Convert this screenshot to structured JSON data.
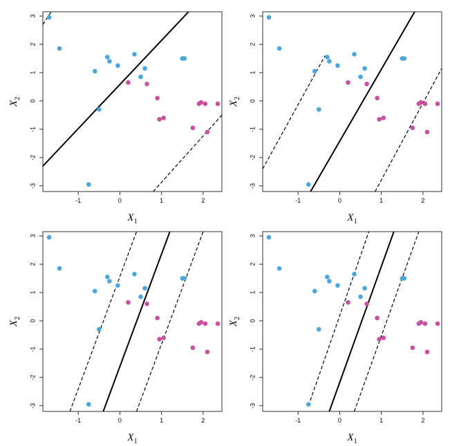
{
  "figure": {
    "layout": "2x2 grid"
  },
  "chart_data": [
    {
      "type": "scatter",
      "panel": "top-left",
      "xlabel": "X",
      "xlabel_sub": "1",
      "ylabel": "X",
      "ylabel_sub": "2",
      "xlim": [
        -1.85,
        2.45
      ],
      "ylim": [
        -3.2,
        3.15
      ],
      "xticks": [
        -1,
        0,
        1,
        2
      ],
      "yticks": [
        -3,
        -2,
        -1,
        0,
        1,
        2,
        3
      ],
      "grid": false,
      "legend": "none",
      "colors": {
        "class_a": "#4aa6dc",
        "class_b": "#c8509f",
        "line": "#000000"
      },
      "points_a": [
        [
          -1.7,
          2.95
        ],
        [
          -1.45,
          1.85
        ],
        [
          -0.6,
          1.05
        ],
        [
          -0.5,
          -0.3
        ],
        [
          -0.3,
          1.55
        ],
        [
          -0.25,
          1.4
        ],
        [
          -0.05,
          1.25
        ],
        [
          0.35,
          1.65
        ],
        [
          0.5,
          0.85
        ],
        [
          0.6,
          1.15
        ],
        [
          1.5,
          1.5
        ],
        [
          1.55,
          1.5
        ],
        [
          -0.75,
          -2.95
        ]
      ],
      "points_b": [
        [
          0.2,
          0.65
        ],
        [
          0.65,
          0.6
        ],
        [
          0.9,
          0.1
        ],
        [
          0.95,
          -0.65
        ],
        [
          1.05,
          -0.6
        ],
        [
          1.75,
          -0.95
        ],
        [
          1.9,
          -0.1
        ],
        [
          1.95,
          -0.05
        ],
        [
          2.05,
          -0.1
        ],
        [
          2.1,
          -1.1
        ],
        [
          2.35,
          -0.1
        ]
      ],
      "lines": [
        {
          "style": "solid",
          "from": [
            -1.85,
            -2.3
          ],
          "to": [
            1.65,
            3.15
          ]
        },
        {
          "style": "dashed",
          "from": [
            -1.85,
            2.7
          ],
          "to": [
            -1.65,
            3.15
          ]
        },
        {
          "style": "dashed",
          "from": [
            0.8,
            -3.2
          ],
          "to": [
            2.45,
            -0.5
          ]
        }
      ]
    },
    {
      "type": "scatter",
      "panel": "top-right",
      "xlabel": "X",
      "xlabel_sub": "1",
      "ylabel": "X",
      "ylabel_sub": "2",
      "xlim": [
        -1.85,
        2.45
      ],
      "ylim": [
        -3.2,
        3.15
      ],
      "xticks": [
        -1,
        0,
        1,
        2
      ],
      "yticks": [
        -3,
        -2,
        -1,
        0,
        1,
        2,
        3
      ],
      "grid": false,
      "legend": "none",
      "colors": {
        "class_a": "#4aa6dc",
        "class_b": "#c8509f",
        "line": "#000000"
      },
      "points_a": [
        [
          -1.7,
          2.95
        ],
        [
          -1.45,
          1.85
        ],
        [
          -0.6,
          1.05
        ],
        [
          -0.5,
          -0.3
        ],
        [
          -0.3,
          1.55
        ],
        [
          -0.25,
          1.4
        ],
        [
          -0.05,
          1.25
        ],
        [
          0.35,
          1.65
        ],
        [
          0.5,
          0.85
        ],
        [
          0.6,
          1.15
        ],
        [
          1.5,
          1.5
        ],
        [
          1.55,
          1.5
        ],
        [
          -0.75,
          -2.95
        ]
      ],
      "points_b": [
        [
          0.2,
          0.65
        ],
        [
          0.65,
          0.6
        ],
        [
          0.9,
          0.1
        ],
        [
          0.95,
          -0.65
        ],
        [
          1.05,
          -0.6
        ],
        [
          1.75,
          -0.95
        ],
        [
          1.9,
          -0.1
        ],
        [
          1.95,
          -0.05
        ],
        [
          2.05,
          -0.1
        ],
        [
          2.1,
          -1.1
        ],
        [
          2.35,
          -0.1
        ]
      ],
      "lines": [
        {
          "style": "solid",
          "from": [
            -0.7,
            -3.2
          ],
          "to": [
            1.8,
            3.15
          ]
        },
        {
          "style": "dashed",
          "from": [
            -1.85,
            -2.4
          ],
          "to": [
            -0.35,
            1.6
          ]
        },
        {
          "style": "dashed",
          "from": [
            0.85,
            -3.2
          ],
          "to": [
            2.45,
            1.15
          ]
        }
      ]
    },
    {
      "type": "scatter",
      "panel": "bottom-left",
      "xlabel": "X",
      "xlabel_sub": "1",
      "ylabel": "X",
      "ylabel_sub": "2",
      "xlim": [
        -1.85,
        2.45
      ],
      "ylim": [
        -3.2,
        3.15
      ],
      "xticks": [
        -1,
        0,
        1,
        2
      ],
      "yticks": [
        -3,
        -2,
        -1,
        0,
        1,
        2,
        3
      ],
      "grid": false,
      "legend": "none",
      "colors": {
        "class_a": "#4aa6dc",
        "class_b": "#c8509f",
        "line": "#000000"
      },
      "points_a": [
        [
          -1.7,
          2.95
        ],
        [
          -1.45,
          1.85
        ],
        [
          -0.6,
          1.05
        ],
        [
          -0.5,
          -0.3
        ],
        [
          -0.3,
          1.55
        ],
        [
          -0.25,
          1.4
        ],
        [
          -0.05,
          1.25
        ],
        [
          0.35,
          1.65
        ],
        [
          0.5,
          0.85
        ],
        [
          0.6,
          1.15
        ],
        [
          1.5,
          1.5
        ],
        [
          1.55,
          1.5
        ],
        [
          -0.75,
          -2.95
        ]
      ],
      "points_b": [
        [
          0.2,
          0.65
        ],
        [
          0.65,
          0.6
        ],
        [
          0.9,
          0.1
        ],
        [
          0.95,
          -0.65
        ],
        [
          1.05,
          -0.6
        ],
        [
          1.75,
          -0.95
        ],
        [
          1.9,
          -0.1
        ],
        [
          1.95,
          -0.05
        ],
        [
          2.05,
          -0.1
        ],
        [
          2.1,
          -1.1
        ],
        [
          2.35,
          -0.1
        ]
      ],
      "lines": [
        {
          "style": "solid",
          "from": [
            -0.4,
            -3.2
          ],
          "to": [
            1.2,
            3.15
          ]
        },
        {
          "style": "dashed",
          "from": [
            -1.2,
            -3.2
          ],
          "to": [
            0.4,
            3.15
          ]
        },
        {
          "style": "dashed",
          "from": [
            0.4,
            -3.2
          ],
          "to": [
            2.0,
            3.15
          ]
        }
      ]
    },
    {
      "type": "scatter",
      "panel": "bottom-right",
      "xlabel": "X",
      "xlabel_sub": "1",
      "ylabel": "X",
      "ylabel_sub": "2",
      "xlim": [
        -1.85,
        2.45
      ],
      "ylim": [
        -3.2,
        3.15
      ],
      "xticks": [
        -1,
        0,
        1,
        2
      ],
      "yticks": [
        -3,
        -2,
        -1,
        0,
        1,
        2,
        3
      ],
      "grid": false,
      "legend": "none",
      "colors": {
        "class_a": "#4aa6dc",
        "class_b": "#c8509f",
        "line": "#000000"
      },
      "points_a": [
        [
          -1.7,
          2.95
        ],
        [
          -1.45,
          1.85
        ],
        [
          -0.6,
          1.05
        ],
        [
          -0.5,
          -0.3
        ],
        [
          -0.3,
          1.55
        ],
        [
          -0.25,
          1.4
        ],
        [
          -0.05,
          1.25
        ],
        [
          0.35,
          1.65
        ],
        [
          0.5,
          0.85
        ],
        [
          0.6,
          1.15
        ],
        [
          1.5,
          1.5
        ],
        [
          1.55,
          1.5
        ],
        [
          -0.75,
          -2.95
        ]
      ],
      "points_b": [
        [
          0.2,
          0.65
        ],
        [
          0.65,
          0.6
        ],
        [
          0.9,
          0.1
        ],
        [
          0.95,
          -0.65
        ],
        [
          1.05,
          -0.6
        ],
        [
          1.75,
          -0.95
        ],
        [
          1.9,
          -0.1
        ],
        [
          1.95,
          -0.05
        ],
        [
          2.05,
          -0.1
        ],
        [
          2.1,
          -1.1
        ],
        [
          2.35,
          -0.1
        ]
      ],
      "lines": [
        {
          "style": "solid",
          "from": [
            -0.25,
            -3.2
          ],
          "to": [
            1.3,
            3.15
          ]
        },
        {
          "style": "dashed",
          "from": [
            -0.75,
            -3.0
          ],
          "to": [
            0.7,
            3.15
          ]
        },
        {
          "style": "dashed",
          "from": [
            0.35,
            -3.2
          ],
          "to": [
            1.9,
            3.15
          ]
        }
      ]
    }
  ]
}
